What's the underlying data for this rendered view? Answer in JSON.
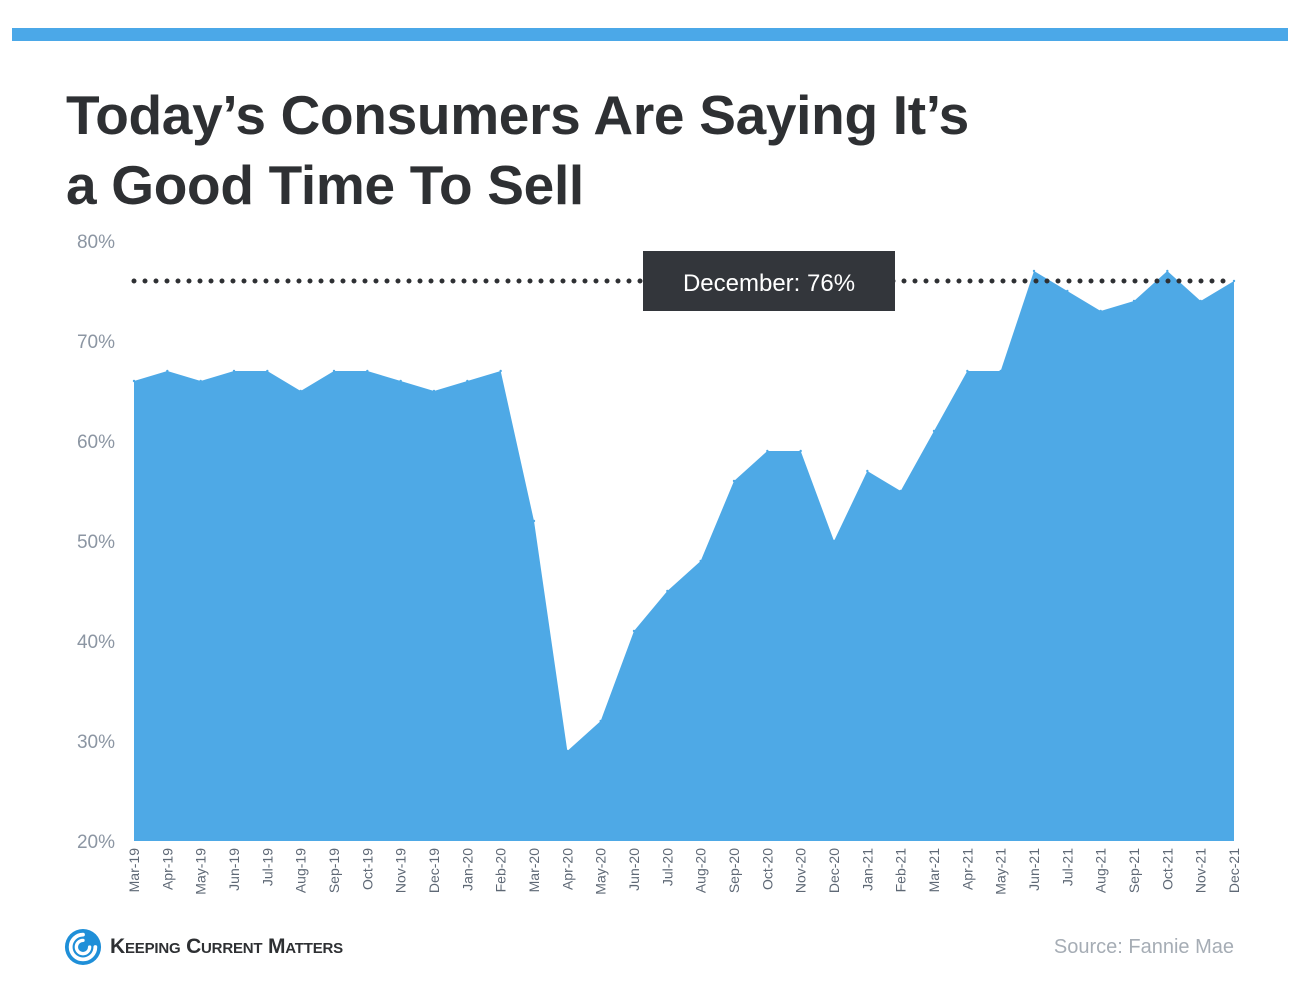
{
  "header": {
    "title_line1": "Today’s Consumers Are Saying It’s",
    "title_line2": "a Good Time To Sell"
  },
  "footer": {
    "brand": "Keeping Current Matters",
    "source": "Source: Fannie Mae"
  },
  "colors": {
    "area": "#4ea9e6",
    "top_bar": "#4ba8e8",
    "callout_bg": "#33363b",
    "dotted_line": "#2e3033"
  },
  "chart_data": {
    "type": "area",
    "title": "Today’s Consumers Are Saying It’s a Good Time To Sell",
    "xlabel": "",
    "ylabel": "",
    "ylim": [
      20,
      80
    ],
    "y_ticks": [
      20,
      30,
      40,
      50,
      60,
      70,
      80
    ],
    "y_tick_format": "%",
    "grid": false,
    "legend": "none",
    "categories": [
      "Mar-19",
      "Apr-19",
      "May-19",
      "Jun-19",
      "Jul-19",
      "Aug-19",
      "Sep-19",
      "Oct-19",
      "Nov-19",
      "Dec-19",
      "Jan-20",
      "Feb-20",
      "Mar-20",
      "Apr-20",
      "May-20",
      "Jun-20",
      "Jul-20",
      "Aug-20",
      "Sep-20",
      "Oct-20",
      "Nov-20",
      "Dec-20",
      "Jan-21",
      "Feb-21",
      "Mar-21",
      "Apr-21",
      "May-21",
      "Jun-21",
      "Jul-21",
      "Aug-21",
      "Sep-21",
      "Oct-21",
      "Nov-21",
      "Dec-21"
    ],
    "values": [
      66,
      67,
      66,
      67,
      67,
      65,
      67,
      67,
      66,
      65,
      66,
      67,
      52,
      29,
      32,
      41,
      45,
      48,
      56,
      59,
      59,
      50,
      57,
      55,
      61,
      67,
      67,
      77,
      75,
      73,
      74,
      77,
      74,
      76
    ],
    "reference_line": {
      "value": 76,
      "style": "dotted"
    },
    "annotation": {
      "text": "December: 76%",
      "value": 76
    }
  }
}
